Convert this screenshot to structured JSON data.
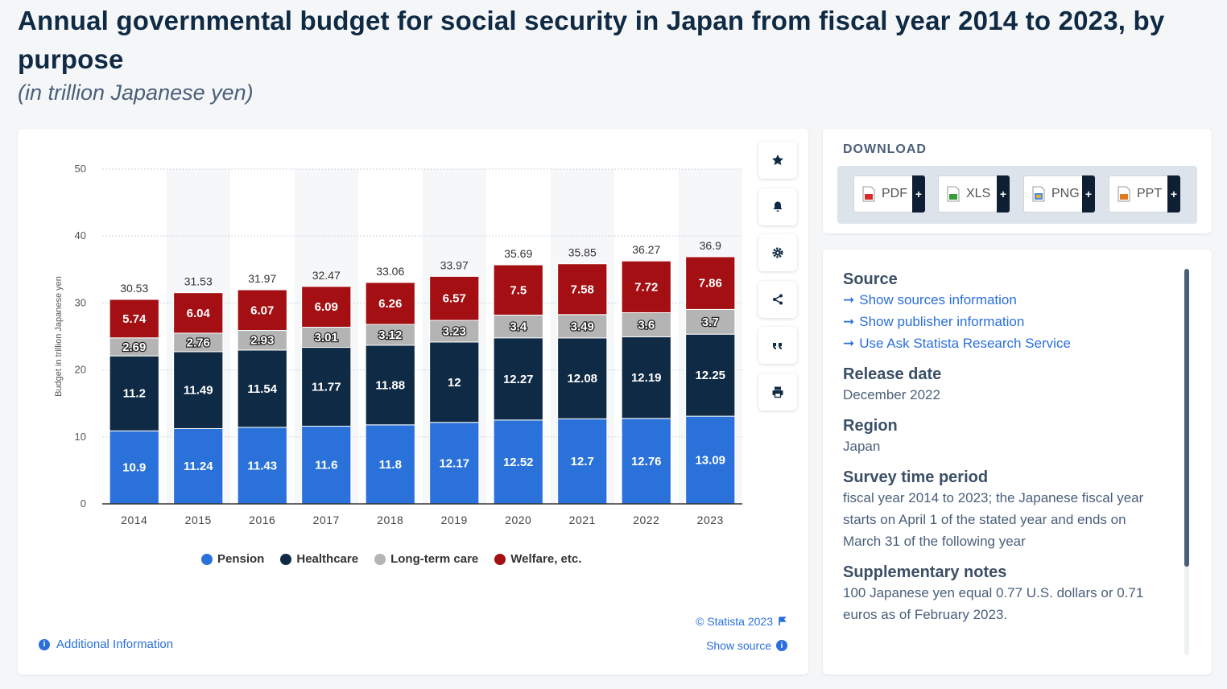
{
  "page": {
    "title": "Annual governmental budget for social security in Japan from fiscal year 2014 to 2023, by purpose",
    "subtitle": "(in trillion Japanese yen)"
  },
  "chart_data": {
    "type": "bar",
    "stacked": true,
    "categories": [
      "2014",
      "2015",
      "2016",
      "2017",
      "2018",
      "2019",
      "2020",
      "2021",
      "2022",
      "2023"
    ],
    "series": [
      {
        "name": "Pension",
        "color": "#2a72d9",
        "values": [
          10.9,
          11.24,
          11.43,
          11.6,
          11.8,
          12.17,
          12.52,
          12.7,
          12.76,
          13.09
        ]
      },
      {
        "name": "Healthcare",
        "color": "#0f2a44",
        "values": [
          11.2,
          11.49,
          11.54,
          11.77,
          11.88,
          12,
          12.27,
          12.08,
          12.19,
          12.25
        ]
      },
      {
        "name": "Long-term care",
        "color": "#b4b4b4",
        "values": [
          2.69,
          2.76,
          2.93,
          3.01,
          3.12,
          3.23,
          3.4,
          3.49,
          3.6,
          3.7
        ]
      },
      {
        "name": "Welfare, etc.",
        "color": "#a30f12",
        "values": [
          5.74,
          6.04,
          6.07,
          6.09,
          6.26,
          6.57,
          7.5,
          7.58,
          7.72,
          7.86
        ]
      }
    ],
    "totals": [
      "30.53",
      "31.53",
      "31.97",
      "32.47",
      "33.06",
      "33.97",
      "35.69",
      "35.85",
      "36.27",
      "36.9"
    ],
    "ylabel": "Budget in trillion Japanese yen",
    "ylim": [
      0,
      50
    ],
    "yticks": [
      "0",
      "10",
      "20",
      "30",
      "40",
      "50"
    ],
    "grid": true,
    "legend_position": "bottom"
  },
  "chart_footer": {
    "copyright": "© Statista 2023",
    "show_source": "Show source",
    "additional_info": "Additional Information"
  },
  "tools": [
    "star-icon",
    "bell-icon",
    "gear-icon",
    "share-icon",
    "quote-icon",
    "print-icon"
  ],
  "download": {
    "title": "DOWNLOAD",
    "buttons": [
      {
        "label": "PDF",
        "plus": "+",
        "color": "#d42a2a"
      },
      {
        "label": "XLS",
        "plus": "+",
        "color": "#3a9a3a"
      },
      {
        "label": "PNG",
        "plus": "+",
        "color": "#4a8ad6"
      },
      {
        "label": "PPT",
        "plus": "+",
        "color": "#e07a1f"
      }
    ]
  },
  "info": {
    "source_title": "Source",
    "links": [
      "Show sources information",
      "Show publisher information",
      "Use Ask Statista Research Service"
    ],
    "release_title": "Release date",
    "release_value": "December 2022",
    "region_title": "Region",
    "region_value": "Japan",
    "survey_title": "Survey time period",
    "survey_value": "fiscal year 2014 to 2023; the Japanese fiscal year starts on April 1 of the stated year and ends on March 31 of the following year",
    "notes_title": "Supplementary notes",
    "notes_value": "100 Japanese yen equal 0.77 U.S. dollars or 0.71 euros as of February 2023."
  }
}
